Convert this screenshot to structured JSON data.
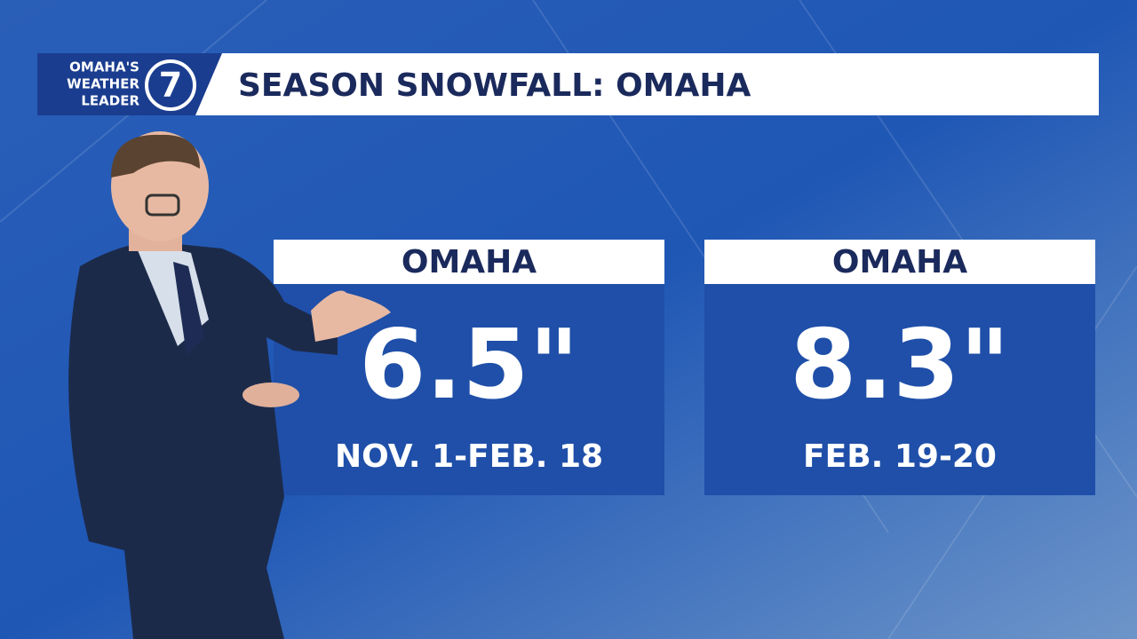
{
  "header": {
    "logo": {
      "lines": [
        "OMAHA'S",
        "WEATHER",
        "LEADER"
      ],
      "number": "7"
    },
    "title": "SEASON SNOWFALL: OMAHA"
  },
  "cards": [
    {
      "place": "OMAHA",
      "amount": "6.5\"",
      "period": "NOV. 1-FEB. 18"
    },
    {
      "place": "OMAHA",
      "amount": "8.3\"",
      "period": "FEB. 19-20"
    }
  ]
}
